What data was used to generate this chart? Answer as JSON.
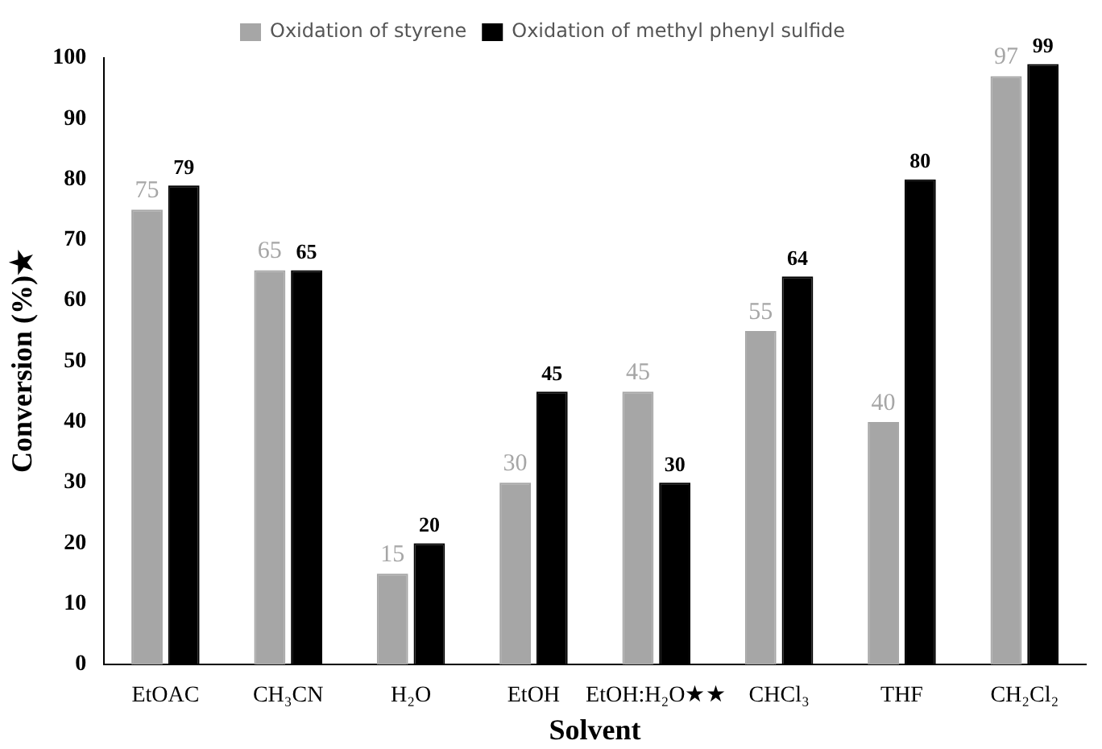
{
  "chart_data": {
    "type": "bar",
    "xlabel": "Solvent",
    "ylabel": "Conversion (%)★",
    "categories": [
      "EtOAC",
      "CH₃CN",
      "H₂O",
      "EtOH",
      "EtOH:H₂O★★",
      "CHCl₃",
      "THF",
      "CH₂Cl₂"
    ],
    "series": [
      {
        "name": "Oxidation of styrene",
        "color": "#a6a6a6",
        "values": [
          75,
          65,
          15,
          30,
          45,
          55,
          40,
          97
        ]
      },
      {
        "name": "Oxidation of methyl phenyl sulfide",
        "color": "#000000",
        "values": [
          79,
          65,
          20,
          45,
          30,
          64,
          80,
          99
        ]
      }
    ],
    "ylim": [
      0,
      100
    ],
    "yticks": [
      0,
      10,
      20,
      30,
      40,
      50,
      60,
      70,
      80,
      90,
      100
    ],
    "grid": false,
    "legend": "top",
    "data_labels": true
  }
}
